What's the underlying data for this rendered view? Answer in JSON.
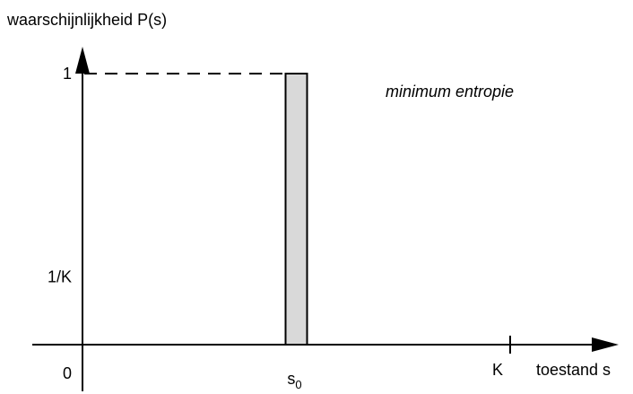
{
  "chart_data": {
    "type": "bar",
    "ylabel": "waarschijnlijkheid P(s)",
    "xlabel": "toestand s",
    "annotation": "minimum entropie",
    "categories": [
      "s0"
    ],
    "values": [
      1
    ],
    "x_ticks": [
      {
        "label": "s",
        "subscript": "0",
        "x": 0.5
      },
      {
        "label": "K",
        "x": 1
      }
    ],
    "y_ticks": [
      {
        "label": "0",
        "y": 0
      },
      {
        "label": "1/K",
        "y": 0.25
      },
      {
        "label": "1",
        "y": 1
      }
    ],
    "xlim": [
      0,
      1.2
    ],
    "ylim": [
      0,
      1.1
    ],
    "reference_line": {
      "y": 1,
      "style": "dashed"
    },
    "bar_fill": "#d9d9d9",
    "grid": false
  }
}
